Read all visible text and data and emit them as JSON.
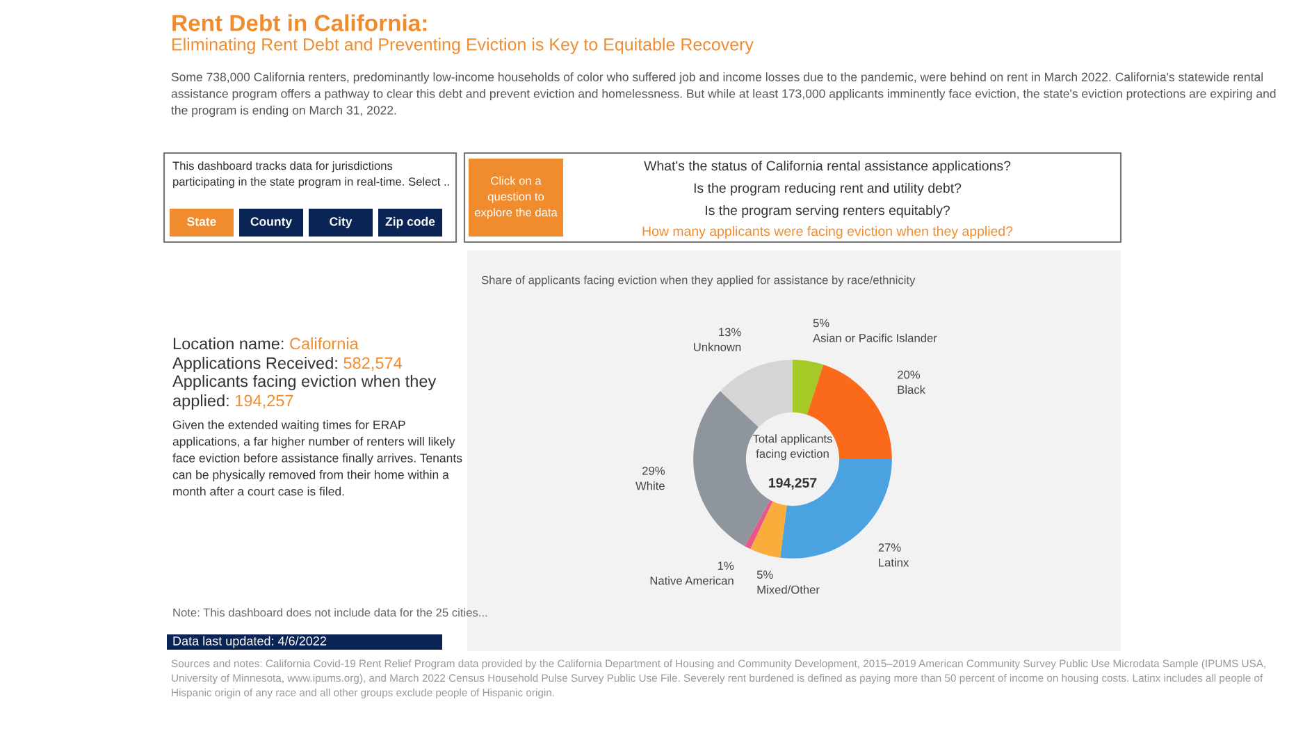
{
  "chart_data": {
    "type": "donut",
    "title": "Rent Debt in California:",
    "subtitle": "Eliminating Rent Debt and Preventing Eviction is Key to Equitable Recovery",
    "categories": [
      "Asian or Pacific Islander",
      "Black",
      "Latinx",
      "Mixed/Other",
      "Native American",
      "White",
      "Unknown"
    ],
    "values": [
      5,
      20,
      27,
      5,
      1,
      29,
      13
    ],
    "colors": [
      "#a5c926",
      "#fb6a1a",
      "#4aa3e0",
      "#f9ae3c",
      "#e9578a",
      "#8e959c",
      "#d5d5d5"
    ],
    "value_labels": [
      "5%",
      "20%",
      "27%",
      "5%",
      "1%",
      "29%",
      "13%"
    ],
    "annotations": [
      "Some 738,000 California renters, predominantly low-income households of color who suffered job and income losses due to the pandemic, were behind on rent in March 2022. California's statewide rental assistance program offers a pathway to clear this debt and prevent eviction and homelessness. But while at least 173,000 applicants imminently face eviction, the state's eviction protections are expiring and the program is ending on March 31, 2022.",
      "This dashboard tracks data for jurisdictions\nparticipating in the state program in real-time. Select ..",
      "State",
      "County",
      "City",
      "Zip code",
      "Click on a\nquestion to\nexplore the data",
      "What's the status of California rental assistance applications?",
      "Is the program reducing rent and utility debt?",
      "Is the program serving renters equitably?",
      "How many applicants were facing eviction when they applied?",
      "Share of applicants facing eviction when they applied for assistance by race/ethnicity",
      "Location name: ",
      "California",
      "Applications Received: ",
      "582,574",
      "Applicants facing eviction when they",
      "applied: ",
      "194,257",
      "Given the extended waiting times for ERAP\napplications, a far higher number of renters will likely\nface eviction before assistance finally arrives. Tenants\ncan be physically removed from their home within a\nmonth after a court case is filed.",
      "Note: This dashboard does not include data for the 25 cities...",
      "Data last updated: 4/6/2022",
      "Total applicants\nfacing eviction",
      "194,257",
      "Sources and notes: California Covid-19 Rent Relief Program data provided by the California Department of Housing and Community Development, 2015–2019 American Community Survey Public Use Microdata Sample (IPUMS USA, University of Minnesota, www.ipums.org), and March 2022 Census Household Pulse Survey Public Use File. Severely rent burdened is defined as paying more than 50 percent of income on housing costs. Latinx includes all people of Hispanic origin of any race and all other groups exclude people of Hispanic origin."
    ]
  }
}
